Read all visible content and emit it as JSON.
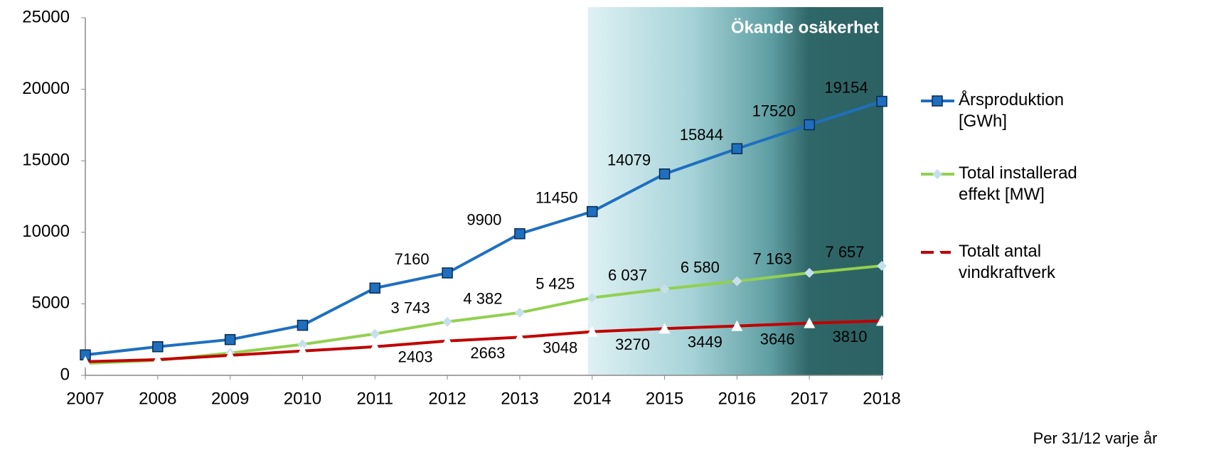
{
  "chart_data": {
    "type": "line",
    "x": [
      2007,
      2008,
      2009,
      2010,
      2011,
      2012,
      2013,
      2014,
      2015,
      2016,
      2017,
      2018
    ],
    "xlim": [
      2007,
      2018
    ],
    "xticks": [
      2007,
      2008,
      2009,
      2010,
      2011,
      2012,
      2013,
      2014,
      2015,
      2016,
      2017,
      2018
    ],
    "ylim": [
      0,
      25000
    ],
    "yticks": [
      0,
      5000,
      10000,
      15000,
      20000,
      25000
    ],
    "series": [
      {
        "name": "Årsproduktion [GWh]",
        "color": "#1f6fbf",
        "marker": "square",
        "values": [
          1430,
          2000,
          2500,
          3500,
          6100,
          7160,
          9900,
          11450,
          14079,
          15844,
          17520,
          19154
        ],
        "value_labels": [
          null,
          null,
          null,
          null,
          null,
          "7160",
          "9900",
          "11450",
          "14079",
          "15844",
          "17520",
          "19154"
        ]
      },
      {
        "name": "Total installerad effekt [MW]",
        "color": "#92d050",
        "marker": "diamond",
        "values": [
          830,
          1050,
          1560,
          2160,
          2900,
          3743,
          4382,
          5425,
          6037,
          6580,
          7163,
          7657
        ],
        "value_labels": [
          null,
          null,
          null,
          null,
          null,
          "3 743",
          "4 382",
          "5 425",
          "6 037",
          "6 580",
          "7 163",
          "7 657"
        ]
      },
      {
        "name": "Totalt antal vindkraftverk",
        "color": "#c00000",
        "marker": "triangle",
        "values": [
          950,
          1100,
          1400,
          1700,
          2000,
          2403,
          2663,
          3048,
          3270,
          3449,
          3646,
          3810
        ],
        "value_labels": [
          null,
          null,
          null,
          null,
          null,
          "2403",
          "2663",
          "3048",
          "3270",
          "3449",
          "3646",
          "3810"
        ]
      }
    ],
    "band": {
      "label": "Ökande osäkerhet",
      "from": 2014,
      "to": 2018
    },
    "note": "Per  31/12 varje år"
  }
}
